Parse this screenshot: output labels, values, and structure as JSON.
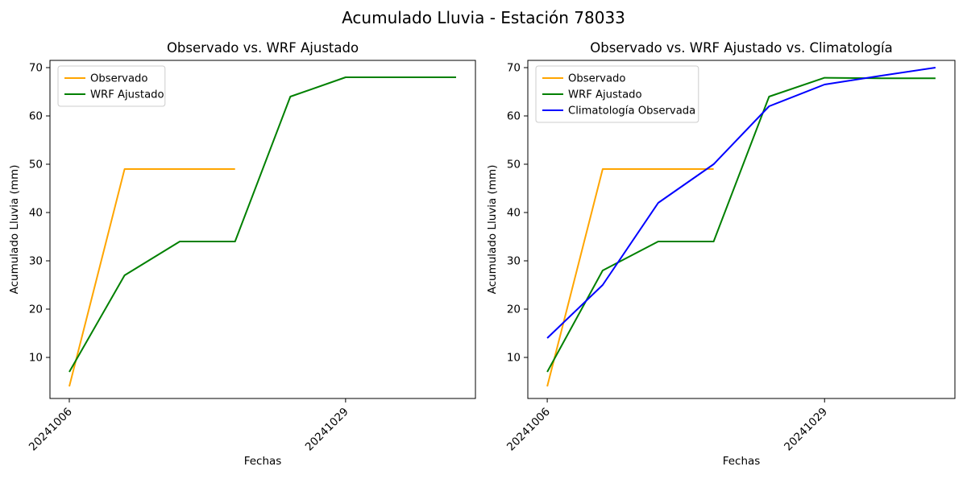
{
  "figure": {
    "title": "Acumulado Lluvia - Estación 78033"
  },
  "colors": {
    "observado": "#ffa500",
    "wrf_ajustado": "#008000",
    "climatologia": "#0000ff",
    "axes": "#000000",
    "legend_border": "#cccccc"
  },
  "chart_data": [
    {
      "type": "line",
      "title": "Observado vs. WRF Ajustado",
      "xlabel": "Fechas",
      "ylabel": "Acumulado Lluvia (mm)",
      "xlim": [
        -0.35,
        7.35
      ],
      "ylim": [
        1.5,
        71.5
      ],
      "yticks": [
        10,
        20,
        30,
        40,
        50,
        60,
        70
      ],
      "xticks": [
        {
          "pos": 0,
          "label": "20241006"
        },
        {
          "pos": 5,
          "label": "20241029"
        }
      ],
      "grid": false,
      "legend_position": "upper left",
      "series": [
        {
          "name": "Observado",
          "color": "#ffa500",
          "x": [
            0,
            1,
            2,
            3
          ],
          "values": [
            4,
            49,
            49,
            49
          ]
        },
        {
          "name": "WRF Ajustado",
          "color": "#008000",
          "x": [
            0,
            1,
            2,
            3,
            4,
            5,
            6,
            7
          ],
          "values": [
            7,
            27,
            34,
            34,
            64,
            68,
            68,
            68
          ]
        }
      ]
    },
    {
      "type": "line",
      "title": "Observado vs. WRF Ajustado vs. Climatología",
      "xlabel": "Fechas",
      "ylabel": "Acumulado Lluvia (mm)",
      "xlim": [
        -0.35,
        7.35
      ],
      "ylim": [
        1.5,
        71.5
      ],
      "yticks": [
        10,
        20,
        30,
        40,
        50,
        60,
        70
      ],
      "xticks": [
        {
          "pos": 0,
          "label": "20241006"
        },
        {
          "pos": 5,
          "label": "20241029"
        }
      ],
      "grid": false,
      "legend_position": "upper left",
      "series": [
        {
          "name": "Observado",
          "color": "#ffa500",
          "x": [
            0,
            1,
            2,
            3
          ],
          "values": [
            4,
            49,
            49,
            49
          ]
        },
        {
          "name": "WRF Ajustado",
          "color": "#008000",
          "x": [
            0,
            1,
            2,
            3,
            4,
            5,
            6,
            7
          ],
          "values": [
            7,
            28,
            34,
            34,
            64,
            67.9,
            67.8,
            67.8
          ]
        },
        {
          "name": "Climatología Observada",
          "color": "#0000ff",
          "x": [
            0,
            1,
            2,
            3,
            4,
            5,
            6,
            7
          ],
          "values": [
            14,
            25,
            42,
            50,
            62,
            66.5,
            68.3,
            70
          ]
        }
      ]
    }
  ]
}
